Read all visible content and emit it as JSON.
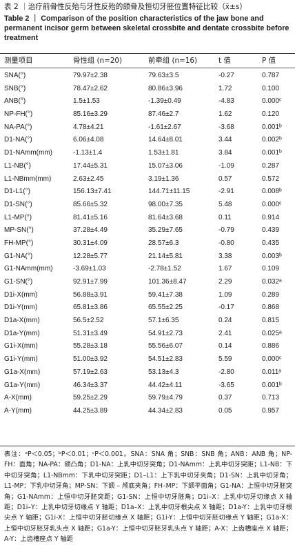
{
  "caption": {
    "cn": "表 2 ｜治疗前骨性反殆与牙性反殆的颌骨及恒切牙胚位置特征比较（x̄±s）",
    "en": "Table 2 ｜ Comparison of the position characteristics of the jaw bone and permanent incisor germ between skeletal crossbite and dentate crossbite before treatment"
  },
  "columns": {
    "item": "测量项目",
    "group_a": "骨性组 (n=20)",
    "group_b": "前牵组 (n=16)",
    "t": "t 值",
    "p": "P 值"
  },
  "rows": [
    [
      "SNA(°)",
      "79.97±2.38",
      "79.63±3.5",
      "-0.27",
      "0.787"
    ],
    [
      "SNB(°)",
      "78.47±2.62",
      "80.86±3.96",
      "1.72",
      "0.100"
    ],
    [
      "ANB(°)",
      "1.5±1.53",
      "-1.39±0.49",
      "-4.83",
      "0.000ᶜ"
    ],
    [
      "NP-FH(°)",
      "85.16±3.29",
      "87.46±2.7",
      "1.62",
      "0.120"
    ],
    [
      "NA-PA(°)",
      "4.78±4.21",
      "-1.61±2.67",
      "-3.68",
      "0.001ᵇ"
    ],
    [
      "D1-NA(°)",
      "6.06±4.08",
      "14.64±8.01",
      "3.44",
      "0.002ᵇ"
    ],
    [
      "D1-NAmm(mm)",
      "-1.13±1.4",
      "1.53±1.81",
      "3.84",
      "0.001ᵇ"
    ],
    [
      "L1-NB(°)",
      "17.44±5.31",
      "15.07±3.06",
      "-1.09",
      "0.287"
    ],
    [
      "L1-NBmm(mm)",
      "2.63±2.45",
      "3.19±1.36",
      "0.57",
      "0.572"
    ],
    [
      "D1-L1(°)",
      "156.13±7.41",
      "144.71±11.15",
      "-2.91",
      "0.008ᵇ"
    ],
    [
      "D1-SN(°)",
      "85.66±5.32",
      "98.00±7.35",
      "5.48",
      "0.000ᶜ"
    ],
    [
      "L1-MP(°)",
      "81.41±5.16",
      "81.64±3.68",
      "0.11",
      "0.914"
    ],
    [
      "MP-SN(°)",
      "37.28±4.49",
      "35.29±7.65",
      "-0.79",
      "0.439"
    ],
    [
      "FH-MP(°)",
      "30.31±4.09",
      "28.57±6.3",
      "-0.80",
      "0.435"
    ],
    [
      "G1-NA(°)",
      "12.28±5.77",
      "21.14±5.81",
      "3.38",
      "0.003ᵇ"
    ],
    [
      "G1-NAmm(mm)",
      "-3.69±1.03",
      "-2.78±1.52",
      "1.67",
      "0.109"
    ],
    [
      "G1-SN(°)",
      "92.91±7.99",
      "101.36±8.47",
      "2.29",
      "0.032ᵃ"
    ],
    [
      "D1i-X(mm)",
      "56.88±3.91",
      "59.41±7.38",
      "1.09",
      "0.289"
    ],
    [
      "D1i-Y(mm)",
      "65.81±3.86",
      "65.55±2.25",
      "-0.17",
      "0.868"
    ],
    [
      "D1a-X(mm)",
      "56.5±2.52",
      "57.1±6.35",
      "0.24",
      "0.815"
    ],
    [
      "D1a-Y(mm)",
      "51.31±3.49",
      "54.91±2.73",
      "2.41",
      "0.025ᵃ"
    ],
    [
      "G1i-X(mm)",
      "55.28±3.18",
      "55.56±6.07",
      "0.14",
      "0.886"
    ],
    [
      "G1i-Y(mm)",
      "51.00±3.92",
      "54.51±2.83",
      "5.59",
      "0.000ᶜ"
    ],
    [
      "G1a-X(mm)",
      "57.19±2.63",
      "53.13±4.3",
      "-2.80",
      "0.011ᵃ"
    ],
    [
      "G1a-Y(mm)",
      "46.34±3.37",
      "44.42±4.11",
      "-3.65",
      "0.001ᵇ"
    ],
    [
      "A-X(mm)",
      "59.25±2.29",
      "59.79±4.79",
      "0.37",
      "0.713"
    ],
    [
      "A-Y(mm)",
      "44.25±3.89",
      "44.34±2.83",
      "0.05",
      "0.957"
    ]
  ],
  "notes": "表注：ᵃP＜0.05；ᵇP＜0.01；ᶜP＜0.001。SNA：SNA 角；SNB：SNB 角；ANB：ANB 角；NP-FH：面角；NA-PA：颌凸角；D1-NA：上乳中切牙突角；D1-NAmm：上乳中切牙突距；L1-NB：下中切牙突角；L1-NBmm：下乳中切牙突距；D1–L1：上下乳中切牙夹角；D1-SN：上乳中切牙角；L1-MP：下乳中切牙角；MP-SN：下颌 – 颅底夹角；FH–MP：下颌平面角；G1-NA：上恒中切牙胚突角；G1-NAmm：上恒中切牙胚突距；G1-SN：上恒中切牙胚角；D1i–X：上乳中切牙切缘点 X 轴距；D1i–Y：上乳中切牙切缘点 Y 轴距；D1a–X：上乳中切牙根尖点 X 轴距；D1a-Y：上乳中切牙根尖点 Y 轴距；G1i-X：上恒中切牙胚切缘点 X 轴距；G1i-Y：上恒中切牙胚切缘点 Y 轴距；G1a-X：上恒中切牙胚牙乳头点 X 轴距；G1a-Y：上恒中切牙胚牙乳头点 Y 轴距；A-X：上齿槽座点 X 轴距；A-Y：上齿槽座点 Y 轴距"
}
